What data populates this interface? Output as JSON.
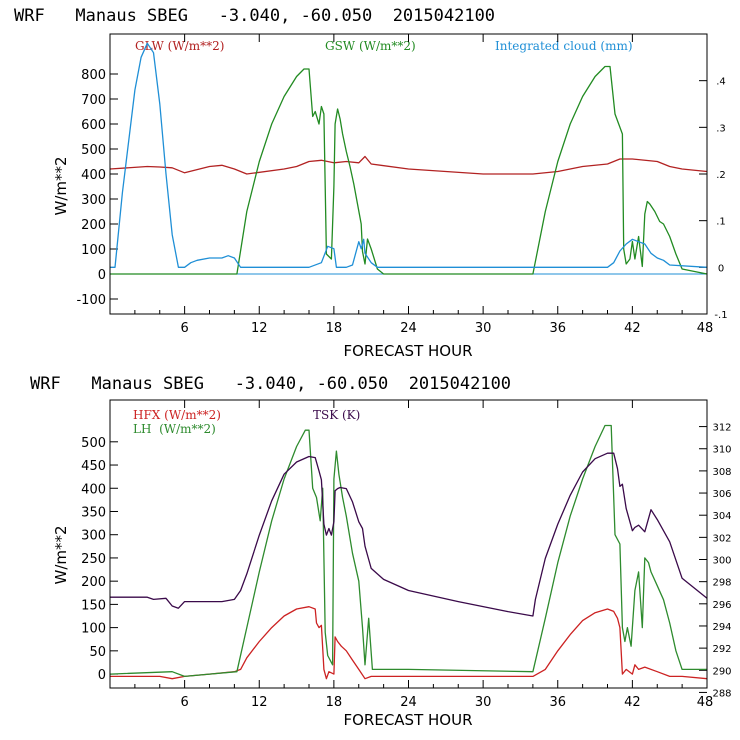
{
  "chart_data": [
    {
      "type": "line",
      "title": "WRF   Manaus SBEG   -3.040, -60.050  2015042100",
      "xlabel": "FORECAST HOUR",
      "ylabel": "W/m**2",
      "xlim": [
        0,
        48
      ],
      "ylim": [
        -160,
        960
      ],
      "y2lim": [
        -0.1,
        0.5
      ],
      "xticks": [
        "6",
        "12",
        "18",
        "24",
        "30",
        "36",
        "42",
        "48"
      ],
      "yticks": [
        "-100",
        "0",
        "100",
        "200",
        "300",
        "400",
        "500",
        "600",
        "700",
        "800"
      ],
      "y2ticks": [
        "-.1",
        "0",
        ".1",
        ".2",
        ".3",
        ".4"
      ],
      "series": [
        {
          "name": "GLW (W/m**2)",
          "color": "#b22222",
          "axis": "left",
          "x": [
            0,
            3,
            4,
            5,
            6,
            8,
            9,
            10,
            11,
            14,
            15,
            16,
            17,
            18,
            19,
            20,
            20.5,
            21,
            24,
            30,
            34,
            36,
            38,
            40,
            41,
            42,
            44,
            45,
            46,
            48
          ],
          "y": [
            420,
            430,
            428,
            425,
            405,
            430,
            435,
            420,
            400,
            420,
            430,
            450,
            455,
            445,
            450,
            445,
            470,
            440,
            420,
            400,
            400,
            410,
            430,
            440,
            460,
            460,
            450,
            430,
            420,
            410
          ]
        },
        {
          "name": "GSW (W/m**2)",
          "color": "#228b22",
          "axis": "left",
          "x": [
            0,
            10.2,
            11,
            12,
            13,
            14,
            15,
            15.6,
            16,
            16.3,
            16.5,
            16.8,
            17,
            17.2,
            17.3,
            17.4,
            17.8,
            18,
            18.1,
            18.3,
            18.5,
            18.7,
            19,
            19.3,
            19.6,
            19.9,
            20.2,
            20.3,
            20.5,
            20.7,
            21,
            21.5,
            22,
            34,
            35,
            36,
            37,
            38,
            39,
            39.8,
            40.2,
            40.6,
            40.9,
            41.2,
            41.3,
            41.5,
            41.8,
            42,
            42.2,
            42.5,
            42.8,
            43,
            43.2,
            43.4,
            43.8,
            44.2,
            44.5,
            45,
            45.5,
            46,
            48
          ],
          "y": [
            0,
            0,
            250,
            450,
            600,
            710,
            790,
            820,
            820,
            630,
            650,
            600,
            670,
            640,
            350,
            80,
            60,
            350,
            600,
            660,
            620,
            560,
            490,
            430,
            360,
            280,
            200,
            90,
            40,
            140,
            100,
            20,
            0,
            0,
            250,
            450,
            600,
            710,
            790,
            830,
            830,
            640,
            600,
            560,
            100,
            40,
            60,
            130,
            60,
            150,
            30,
            240,
            290,
            280,
            250,
            210,
            200,
            150,
            80,
            20,
            0
          ]
        },
        {
          "name": "Integrated cloud (mm)",
          "color": "#1f8fd6",
          "axis": "right",
          "x": [
            0,
            0.4,
            1,
            2,
            2.5,
            3,
            3.5,
            4,
            4.5,
            5,
            5.5,
            6,
            6.5,
            7,
            8,
            9,
            9.5,
            10,
            10.5,
            15,
            16,
            17,
            17.5,
            18,
            18.2,
            19,
            19.5,
            20,
            20.2,
            20.4,
            20.5,
            21,
            21.5,
            22,
            40,
            40.5,
            41,
            41.5,
            42,
            42.5,
            43,
            43.5,
            44,
            44.5,
            45,
            48
          ],
          "y": [
            0,
            0,
            0.16,
            0.38,
            0.45,
            0.48,
            0.46,
            0.35,
            0.2,
            0.07,
            0,
            0,
            0.01,
            0.015,
            0.02,
            0.02,
            0.025,
            0.02,
            0,
            0,
            0,
            0.01,
            0.045,
            0.04,
            0,
            0,
            0.005,
            0.055,
            0.04,
            0.06,
            0.03,
            0.01,
            0,
            0,
            0,
            0.01,
            0.035,
            0.05,
            0.06,
            0.055,
            0.05,
            0.03,
            0.02,
            0.015,
            0.005,
            0
          ]
        }
      ]
    },
    {
      "type": "line",
      "title": "WRF   Manaus SBEG   -3.040, -60.050  2015042100",
      "xlabel": "FORECAST HOUR",
      "ylabel": "W/m**2",
      "xlim": [
        0,
        48
      ],
      "ylim": [
        -30,
        590
      ],
      "y2lim": [
        288.4,
        314.4
      ],
      "xticks": [
        "6",
        "12",
        "18",
        "24",
        "30",
        "36",
        "42",
        "48"
      ],
      "yticks": [
        "0",
        "50",
        "100",
        "150",
        "200",
        "250",
        "300",
        "350",
        "400",
        "450",
        "500"
      ],
      "y2ticks": [
        "288",
        "290",
        "292",
        "294",
        "296",
        "298",
        "300",
        "302",
        "304",
        "306",
        "308",
        "310",
        "312"
      ],
      "series": [
        {
          "name": "HFX (W/m**2)",
          "color": "#cc2222",
          "axis": "left",
          "x": [
            0,
            4,
            5,
            6,
            8,
            10,
            10.5,
            11,
            12,
            13,
            14,
            15,
            16,
            16.5,
            16.6,
            16.8,
            17,
            17.2,
            17.4,
            17.6,
            18,
            18.1,
            18.3,
            18.6,
            19,
            19.5,
            20,
            20.5,
            21,
            22,
            24,
            30,
            34,
            35,
            36,
            37,
            38,
            39,
            40,
            40.5,
            40.8,
            41,
            41.2,
            41.5,
            42,
            42.2,
            42.5,
            43,
            44,
            45,
            46,
            48
          ],
          "y": [
            -5,
            -5,
            -10,
            -5,
            0,
            5,
            10,
            35,
            70,
            100,
            125,
            140,
            145,
            140,
            110,
            100,
            105,
            10,
            -10,
            5,
            0,
            80,
            70,
            60,
            50,
            30,
            10,
            -10,
            -5,
            -5,
            -5,
            -5,
            -5,
            10,
            50,
            85,
            115,
            132,
            140,
            135,
            120,
            100,
            0,
            10,
            0,
            20,
            10,
            15,
            5,
            -5,
            -5,
            -10
          ]
        },
        {
          "name": "LH  (W/m**2)",
          "color": "#2e8b2e",
          "axis": "left",
          "x": [
            0,
            5,
            6,
            8,
            10.2,
            11,
            12,
            13,
            14,
            15,
            15.7,
            16,
            16.3,
            16.6,
            16.9,
            17.1,
            17.3,
            17.5,
            17.9,
            18,
            18.2,
            18.4,
            18.7,
            19,
            19.5,
            20,
            20.3,
            20.5,
            20.8,
            21.1,
            22,
            24,
            34,
            35,
            36,
            37,
            38,
            39,
            39.8,
            40.3,
            40.6,
            41,
            41.2,
            41.4,
            41.6,
            41.9,
            42.2,
            42.5,
            42.8,
            43,
            43.3,
            43.5,
            44,
            44.5,
            45,
            45.5,
            46,
            48
          ],
          "y": [
            0,
            5,
            -5,
            0,
            5,
            100,
            220,
            330,
            420,
            490,
            525,
            525,
            400,
            380,
            330,
            400,
            90,
            40,
            20,
            420,
            480,
            430,
            380,
            340,
            260,
            200,
            100,
            20,
            120,
            10,
            10,
            10,
            5,
            120,
            240,
            340,
            420,
            490,
            535,
            535,
            300,
            280,
            100,
            70,
            100,
            60,
            180,
            220,
            100,
            250,
            240,
            220,
            190,
            160,
            110,
            50,
            10,
            10
          ]
        },
        {
          "name": "TSK (K)",
          "color": "#3a0a4a",
          "axis": "right",
          "x": [
            0,
            3,
            3.5,
            4.5,
            5,
            5.5,
            6,
            7,
            8,
            9,
            9.5,
            10,
            10.5,
            11,
            12,
            13,
            14,
            15,
            16,
            16.5,
            16.8,
            17,
            17.2,
            17.4,
            17.6,
            17.8,
            18,
            18.1,
            18.3,
            18.5,
            19,
            19.5,
            20,
            20.3,
            20.5,
            20.8,
            21,
            22,
            24,
            28,
            32,
            34,
            34.2,
            35,
            36,
            37,
            38,
            39,
            40,
            40.5,
            40.8,
            41,
            41.2,
            41.5,
            42,
            42.2,
            42.5,
            43,
            43.5,
            44,
            45,
            46,
            48
          ],
          "y": [
            296.6,
            296.6,
            296.4,
            296.5,
            295.8,
            295.6,
            296.2,
            296.2,
            296.2,
            296.2,
            296.3,
            296.4,
            297.2,
            298.7,
            302.2,
            305.3,
            307.7,
            308.8,
            309.3,
            309.2,
            308,
            307.2,
            303.2,
            302.2,
            302.8,
            302.2,
            303.4,
            306.2,
            306.4,
            306.5,
            306.4,
            305.2,
            303.4,
            302.8,
            301.2,
            300,
            299.2,
            298.2,
            297.2,
            296.2,
            295.3,
            294.9,
            296.4,
            300.1,
            303.2,
            305.8,
            307.9,
            309.1,
            309.6,
            309.6,
            308.2,
            306.6,
            306.8,
            304.6,
            302.6,
            302.9,
            303.1,
            302.5,
            304.5,
            303.6,
            301.6,
            298.3,
            296.5
          ]
        }
      ]
    }
  ]
}
